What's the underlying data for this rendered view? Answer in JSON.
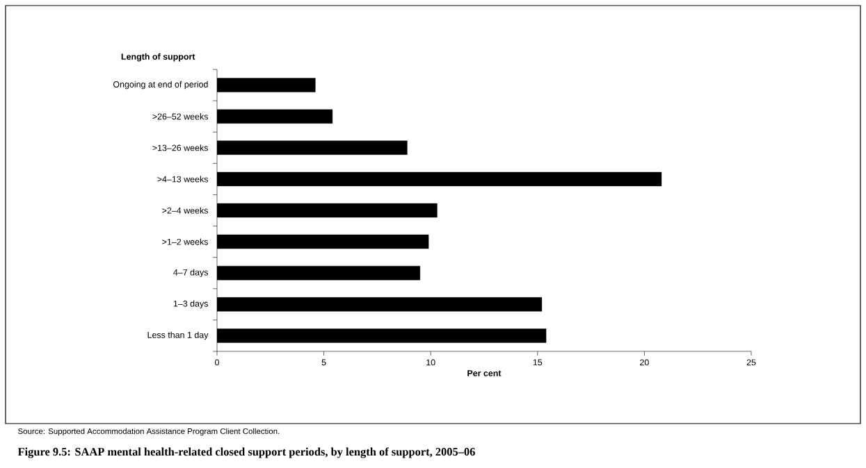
{
  "chart_data": {
    "type": "bar",
    "orientation": "horizontal",
    "title": "Figure 9.5: SAAP mental health-related closed support periods, by length of support, 2005–06",
    "xlabel": "Per cent",
    "ylabel": "Length of support",
    "annotations": [
      "Source: Supported Accommodation Assistance Program Client Collection."
    ],
    "categories": [
      "Ongoing at end of period",
      ">26–52 weeks",
      ">13–26 weeks",
      ">4–13 weeks",
      ">2–4 weeks",
      ">1–2 weeks",
      "4–7 days",
      "1–3 days",
      "Less than 1 day"
    ],
    "values": [
      4.6,
      5.4,
      8.9,
      20.8,
      10.3,
      9.9,
      9.5,
      15.2,
      15.4
    ],
    "color": "#000000",
    "xlim": [
      0,
      25
    ],
    "xticks": [
      0,
      5,
      10,
      15,
      20,
      25
    ]
  }
}
